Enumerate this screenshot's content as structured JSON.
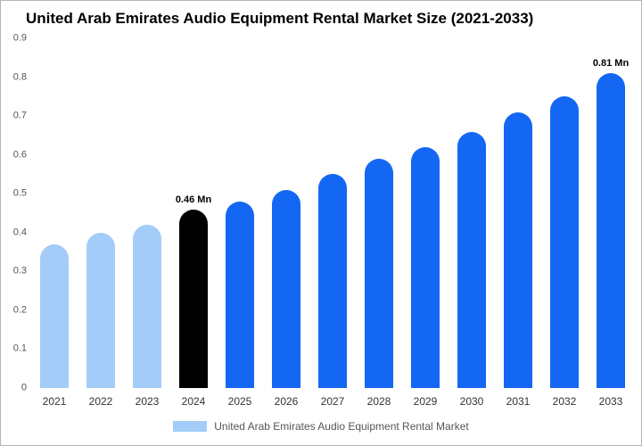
{
  "title": "United Arab Emirates Audio Equipment Rental Market Size (2021-2033)",
  "chart_data": {
    "type": "bar",
    "title": "United Arab Emirates Audio Equipment Rental Market Size (2021-2033)",
    "categories": [
      "2021",
      "2022",
      "2023",
      "2024",
      "2025",
      "2026",
      "2027",
      "2028",
      "2029",
      "2030",
      "2031",
      "2032",
      "2033"
    ],
    "values": [
      0.37,
      0.4,
      0.42,
      0.46,
      0.48,
      0.51,
      0.55,
      0.59,
      0.62,
      0.66,
      0.71,
      0.75,
      0.81
    ],
    "unit": "Mn",
    "ylim": [
      0,
      0.9
    ],
    "yticks": [
      0,
      0.1,
      0.2,
      0.3,
      0.4,
      0.5,
      0.6,
      0.7,
      0.8,
      0.9
    ],
    "grid": false,
    "legend": "United Arab Emirates Audio Equipment Rental Market",
    "legend_position": "bottom",
    "colors": {
      "historical": "#A4CCF8",
      "current": "#000000",
      "forecast": "#1467F2"
    },
    "bar_styles": [
      "historical",
      "historical",
      "historical",
      "current",
      "forecast",
      "forecast",
      "forecast",
      "forecast",
      "forecast",
      "forecast",
      "forecast",
      "forecast",
      "forecast"
    ],
    "annotations": [
      {
        "index": 3,
        "label": "0.46 Mn"
      },
      {
        "index": 12,
        "label": "0.81 Mn"
      }
    ]
  }
}
